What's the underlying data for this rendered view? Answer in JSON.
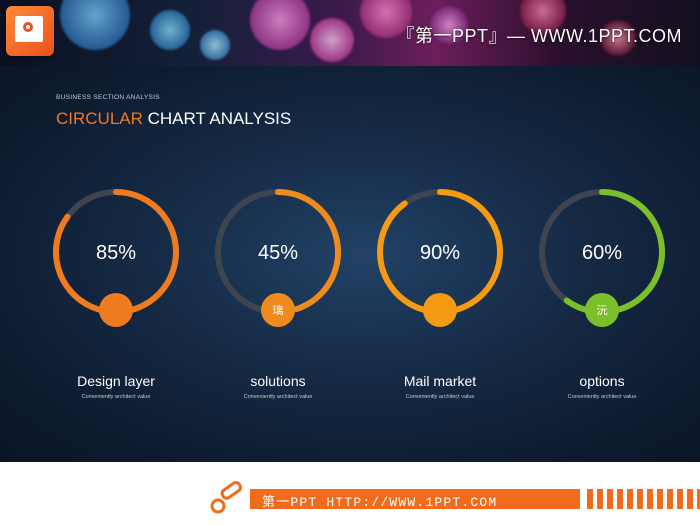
{
  "header": {
    "brand": "『第一PPT』— WWW.1PPT.COM",
    "logo_icon": "powerpoint-logo-icon"
  },
  "slide": {
    "kicker": "BUSINESS SECTION ANALYSIS",
    "title_accent": "CIRCULAR",
    "title_rest": " CHART ANALYSIS"
  },
  "chart_data": {
    "type": "donut",
    "items": [
      {
        "value": 85,
        "percent_label": "85%",
        "label": "Design layer",
        "sub": "Conveniently architect value",
        "color": "#f07a1f",
        "marker_text": ""
      },
      {
        "value": 45,
        "percent_label": "45%",
        "label": "solutions",
        "sub": "Conveniently architect value",
        "color": "#f08a1f",
        "marker_text": "璃"
      },
      {
        "value": 90,
        "percent_label": "90%",
        "label": "Mail market",
        "sub": "Conveniently architect value",
        "color": "#f59a12",
        "marker_text": ""
      },
      {
        "value": 60,
        "percent_label": "60%",
        "label": "options",
        "sub": "Conveniently architect value",
        "color": "#7bbf2a",
        "marker_text": "沅"
      }
    ],
    "track_color": "#3f4550"
  },
  "footer": {
    "text": "第一PPT HTTP://WWW.1PPT.COM",
    "icon": "pencil-icon",
    "accent_color": "#f26a1b"
  }
}
